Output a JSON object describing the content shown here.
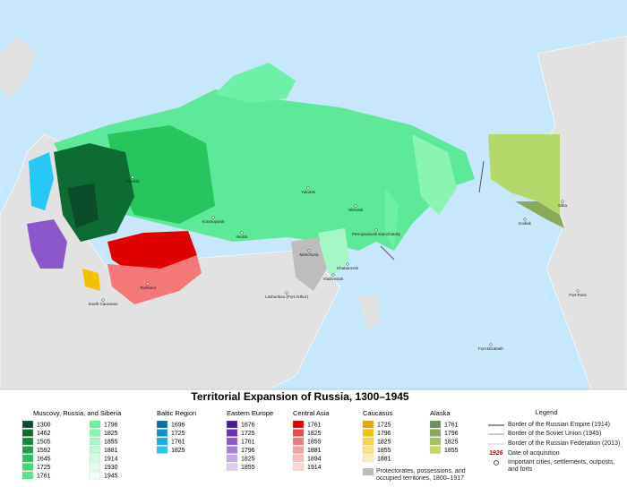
{
  "title": "Territorial Expansion of Russia, 1300–1945",
  "groups": [
    {
      "title": "Muscovy, Russia, and Siberia",
      "items": [
        {
          "label": "1300",
          "color": "#0a4d2a"
        },
        {
          "label": "1462",
          "color": "#0d6b34"
        },
        {
          "label": "1505",
          "color": "#0f8a3e"
        },
        {
          "label": "1592",
          "color": "#16a34a"
        },
        {
          "label": "1645",
          "color": "#28c45d"
        },
        {
          "label": "1725",
          "color": "#3ddc72"
        },
        {
          "label": "1761",
          "color": "#55e58a"
        },
        {
          "label": "1796",
          "color": "#6ef0a0"
        },
        {
          "label": "1825",
          "color": "#8af4b3"
        },
        {
          "label": "1855",
          "color": "#a6f7c6"
        },
        {
          "label": "1881",
          "color": "#bef9d5"
        },
        {
          "label": "1914",
          "color": "#d2fbe2"
        },
        {
          "label": "1930",
          "color": "#e2fdec"
        },
        {
          "label": "1945",
          "color": "#eefff4"
        }
      ]
    },
    {
      "title": "Baltic Region",
      "items": [
        {
          "label": "1696",
          "color": "#0a6fa8"
        },
        {
          "label": "1725",
          "color": "#1290cc"
        },
        {
          "label": "1761",
          "color": "#1aaee6"
        },
        {
          "label": "1825",
          "color": "#27c8f5"
        }
      ]
    },
    {
      "title": "Eastern Europe",
      "items": [
        {
          "label": "1676",
          "color": "#4b1c8c"
        },
        {
          "label": "1725",
          "color": "#6a33b5"
        },
        {
          "label": "1761",
          "color": "#8a58cc"
        },
        {
          "label": "1796",
          "color": "#a77fd9"
        },
        {
          "label": "1825",
          "color": "#c3a7e6"
        },
        {
          "label": "1855",
          "color": "#dccdf0"
        }
      ]
    },
    {
      "title": "Central Asia",
      "items": [
        {
          "label": "1761",
          "color": "#e00000"
        },
        {
          "label": "1825",
          "color": "#ef4848"
        },
        {
          "label": "1855",
          "color": "#f47878"
        },
        {
          "label": "1881",
          "color": "#f7a0a0"
        },
        {
          "label": "1894",
          "color": "#f9bcbc"
        },
        {
          "label": "1914",
          "color": "#fbd6d6"
        }
      ]
    },
    {
      "title": "Caucasus",
      "items": [
        {
          "label": "1725",
          "color": "#e0a800"
        },
        {
          "label": "1796",
          "color": "#f2c200"
        },
        {
          "label": "1825",
          "color": "#f7d640"
        },
        {
          "label": "1855",
          "color": "#fae27e"
        },
        {
          "label": "1881",
          "color": "#fcefb4"
        }
      ]
    },
    {
      "title": "Alaska",
      "items": [
        {
          "label": "1761",
          "color": "#6b8f5a"
        },
        {
          "label": "1796",
          "color": "#8aaa5a"
        },
        {
          "label": "1825",
          "color": "#a6c35a"
        },
        {
          "label": "1855",
          "color": "#c2dc5a"
        }
      ]
    }
  ],
  "legend": {
    "title": "Legend",
    "borders": [
      "Border of the Russian Empire (1914)",
      "Border of the Soviet Union (1945)",
      "Border of the Russian Federation (2013)"
    ],
    "date_sample": "1926",
    "date_label": "Date of acquisition",
    "cities_label": "Important cities, settlements, outposts, and forts",
    "protectorates_label": "Protectorates, possessions, and occupied territories, 1800–1917"
  },
  "map_labels": [
    "Tobolsk",
    "Krasnoyarsk",
    "Irkutsk",
    "Yakutsk",
    "Okhotsk",
    "Petropavlovsk-Kamchatsky",
    "Khabarovsk",
    "Vladivostok",
    "Manchuria",
    "Lüshunkou (Port Arthur)",
    "Tashkent",
    "South Caucasus",
    "Sitka",
    "Kodiak",
    "Fort Ross",
    "Fort Elizabeth"
  ]
}
